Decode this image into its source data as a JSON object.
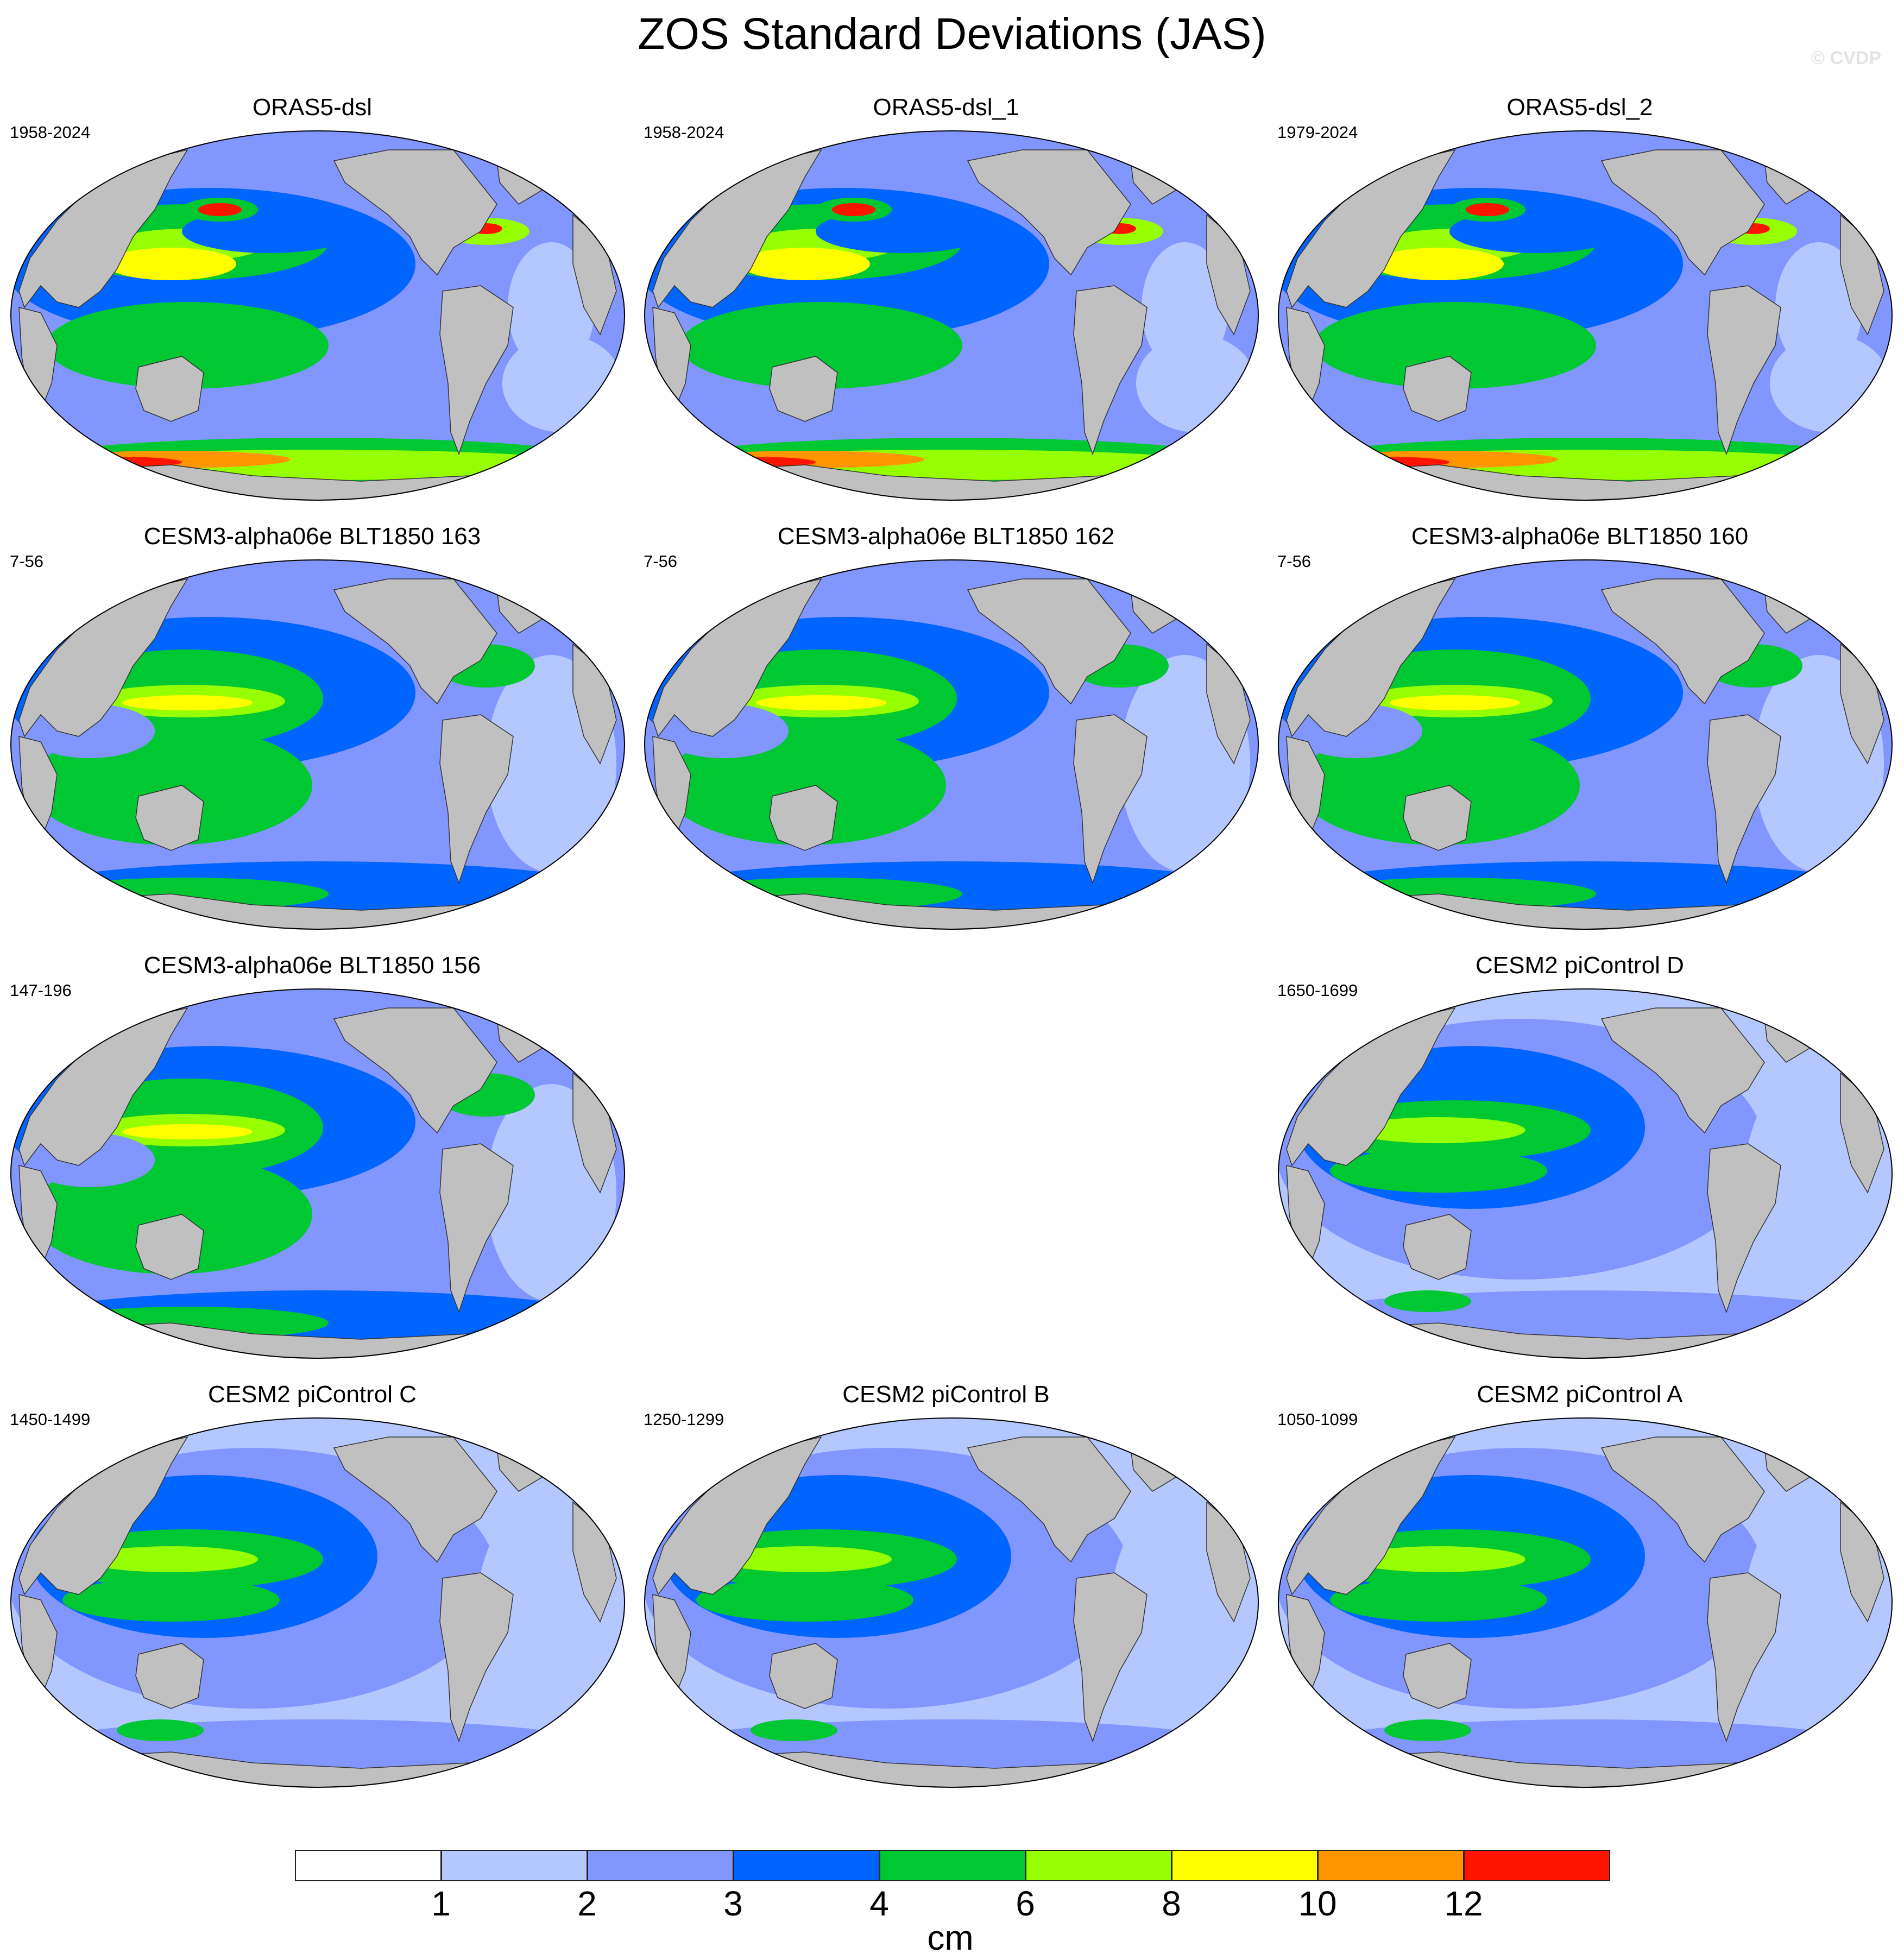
{
  "title": "ZOS Standard Deviations (JAS)",
  "watermark": "© CVDP",
  "colors": {
    "ocean_levels": [
      "#ffffff",
      "#b4c8ff",
      "#8296ff",
      "#0064ff",
      "#00c832",
      "#96ff00",
      "#ffff00",
      "#ff9600",
      "#ff1400"
    ],
    "land": "#c0c0c0"
  },
  "panels": [
    {
      "title": "ORAS5-dsl",
      "years": "1958-2024",
      "style": "obs"
    },
    {
      "title": "ORAS5-dsl_1",
      "years": "1958-2024",
      "style": "obs"
    },
    {
      "title": "ORAS5-dsl_2",
      "years": "1979-2024",
      "style": "obs"
    },
    {
      "title": "CESM3-alpha06e BLT1850 163",
      "years": "7-56",
      "style": "cesm3"
    },
    {
      "title": "CESM3-alpha06e BLT1850 162",
      "years": "7-56",
      "style": "cesm3"
    },
    {
      "title": "CESM3-alpha06e BLT1850 160",
      "years": "7-56",
      "style": "cesm3"
    },
    {
      "title": "CESM3-alpha06e BLT1850 156",
      "years": "147-196",
      "style": "cesm3"
    },
    {
      "title": "CESM2 piControl D",
      "years": "1650-1699",
      "style": "cesm2"
    },
    {
      "title": "CESM2 piControl C",
      "years": "1450-1499",
      "style": "cesm2"
    },
    {
      "title": "CESM2 piControl B",
      "years": "1250-1299",
      "style": "cesm2"
    },
    {
      "title": "CESM2 piControl A",
      "years": "1050-1099",
      "style": "cesm2"
    }
  ],
  "colorbar": {
    "labels": [
      "1",
      "2",
      "3",
      "4",
      "6",
      "8",
      "10",
      "12"
    ],
    "units": "cm"
  }
}
